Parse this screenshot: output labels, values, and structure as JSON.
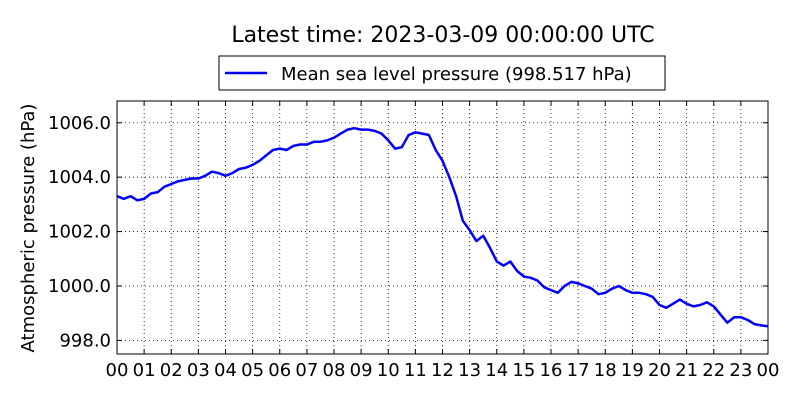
{
  "chart_data": {
    "type": "line",
    "title": "Latest time: 2023-03-09 00:00:00 UTC",
    "xlabel": "",
    "ylabel": "Atmospheric pressure (hPa)",
    "xlim": [
      0,
      24
    ],
    "ylim": [
      997.5,
      1006.8
    ],
    "grid": true,
    "legend": "top-center",
    "x_tick_labels": [
      "00",
      "01",
      "02",
      "03",
      "04",
      "05",
      "06",
      "07",
      "08",
      "09",
      "10",
      "11",
      "12",
      "13",
      "14",
      "15",
      "16",
      "17",
      "18",
      "19",
      "20",
      "21",
      "22",
      "23",
      "00"
    ],
    "y_ticks": [
      998.0,
      1000.0,
      1002.0,
      1004.0,
      1006.0
    ],
    "y_tick_labels": [
      "998.0",
      "1000.0",
      "1002.0",
      "1004.0",
      "1006.0"
    ],
    "series": [
      {
        "name": "Mean sea level pressure (998.517 hPa)",
        "color": "#0000ff",
        "x": [
          0,
          0.25,
          0.5,
          0.75,
          1.0,
          1.25,
          1.5,
          1.75,
          2.0,
          2.25,
          2.5,
          2.75,
          3.0,
          3.25,
          3.5,
          3.75,
          4.0,
          4.25,
          4.5,
          4.75,
          5.0,
          5.25,
          5.5,
          5.75,
          6.0,
          6.25,
          6.5,
          6.75,
          7.0,
          7.25,
          7.5,
          7.75,
          8.0,
          8.25,
          8.5,
          8.75,
          9.0,
          9.25,
          9.5,
          9.75,
          10.0,
          10.25,
          10.5,
          10.75,
          11.0,
          11.25,
          11.5,
          11.75,
          12.0,
          12.25,
          12.5,
          12.75,
          13.0,
          13.25,
          13.5,
          13.75,
          14.0,
          14.25,
          14.5,
          14.75,
          15.0,
          15.25,
          15.5,
          15.75,
          16.0,
          16.25,
          16.5,
          16.75,
          17.0,
          17.25,
          17.5,
          17.75,
          18.0,
          18.25,
          18.5,
          18.75,
          19.0,
          19.25,
          19.5,
          19.75,
          20.0,
          20.25,
          20.5,
          20.75,
          21.0,
          21.25,
          21.5,
          21.75,
          22.0,
          22.25,
          22.5,
          22.75,
          23.0,
          23.25,
          23.5,
          23.75,
          24.0
        ],
        "y": [
          1003.3,
          1003.2,
          1003.3,
          1003.15,
          1003.2,
          1003.4,
          1003.45,
          1003.65,
          1003.75,
          1003.85,
          1003.9,
          1003.95,
          1003.95,
          1004.05,
          1004.2,
          1004.15,
          1004.05,
          1004.15,
          1004.3,
          1004.35,
          1004.45,
          1004.6,
          1004.8,
          1005.0,
          1005.05,
          1005.0,
          1005.15,
          1005.2,
          1005.2,
          1005.3,
          1005.3,
          1005.35,
          1005.45,
          1005.6,
          1005.75,
          1005.8,
          1005.75,
          1005.75,
          1005.7,
          1005.6,
          1005.35,
          1005.05,
          1005.1,
          1005.55,
          1005.65,
          1005.6,
          1005.55,
          1005.0,
          1004.6,
          1004.0,
          1003.3,
          1002.4,
          1002.05,
          1001.65,
          1001.85,
          1001.4,
          1000.9,
          1000.75,
          1000.9,
          1000.55,
          1000.35,
          1000.3,
          1000.2,
          999.95,
          999.85,
          999.75,
          1000.0,
          1000.15,
          1000.1,
          1000.0,
          999.9,
          999.7,
          999.75,
          999.9,
          1000.0,
          999.85,
          999.75,
          999.75,
          999.7,
          999.6,
          999.3,
          999.2,
          999.35,
          999.5,
          999.35,
          999.25,
          999.3,
          999.4,
          999.25,
          998.95,
          998.65,
          998.85,
          998.85,
          998.75,
          998.6,
          998.55,
          998.52
        ]
      }
    ]
  }
}
